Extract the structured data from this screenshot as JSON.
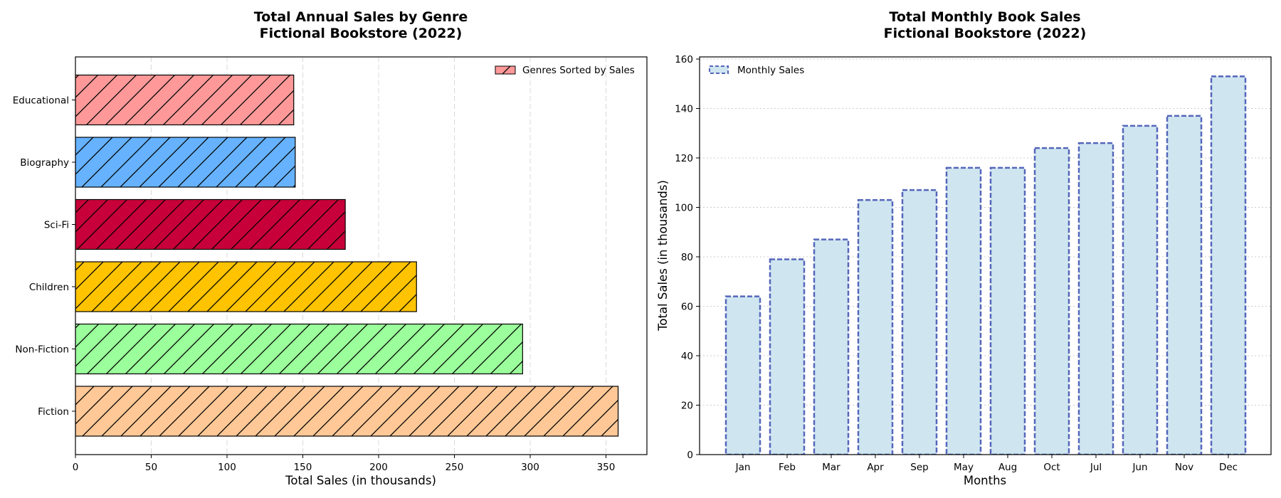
{
  "chart_data": [
    {
      "type": "bar",
      "orientation": "horizontal",
      "title_line1": "Total Annual Sales by Genre",
      "title_line2": "Fictional Bookstore (2022)",
      "xlabel": "Total Sales (in thousands)",
      "ylabel": "",
      "xlim": [
        0,
        377
      ],
      "xticks": [
        0,
        50,
        100,
        150,
        200,
        250,
        300,
        350
      ],
      "categories": [
        "Fiction",
        "Non-Fiction",
        "Children",
        "Sci-Fi",
        "Biography",
        "Educational"
      ],
      "values": [
        358,
        295,
        225,
        178,
        145,
        144
      ],
      "colors": [
        "#FFC896",
        "#9BFF9B",
        "#FFC300",
        "#C70039",
        "#66B2FF",
        "#FF9999"
      ],
      "hatch": "diagonal",
      "grid": "vertical dashed",
      "legend": {
        "label": "Genres Sorted by Sales",
        "placement": "top-right"
      }
    },
    {
      "type": "bar",
      "orientation": "vertical",
      "title_line1": "Total Monthly Book Sales",
      "title_line2": "Fictional Bookstore (2022)",
      "xlabel": "Months",
      "ylabel": "Total Sales (in thousands)",
      "ylim": [
        0,
        160
      ],
      "yticks": [
        0,
        20,
        40,
        60,
        80,
        100,
        120,
        140,
        160
      ],
      "categories": [
        "Jan",
        "Feb",
        "Mar",
        "Apr",
        "Sep",
        "May",
        "Aug",
        "Oct",
        "Jul",
        "Jun",
        "Nov",
        "Dec"
      ],
      "values": [
        64,
        79,
        87,
        103,
        107,
        116,
        116,
        124,
        126,
        133,
        137,
        153
      ],
      "fill_color": "#CFE6F0",
      "edge_color": "#5566BB",
      "edge_style": "dashed",
      "grid": "horizontal dotted",
      "legend": {
        "label": "Monthly Sales",
        "placement": "top-left"
      }
    }
  ]
}
